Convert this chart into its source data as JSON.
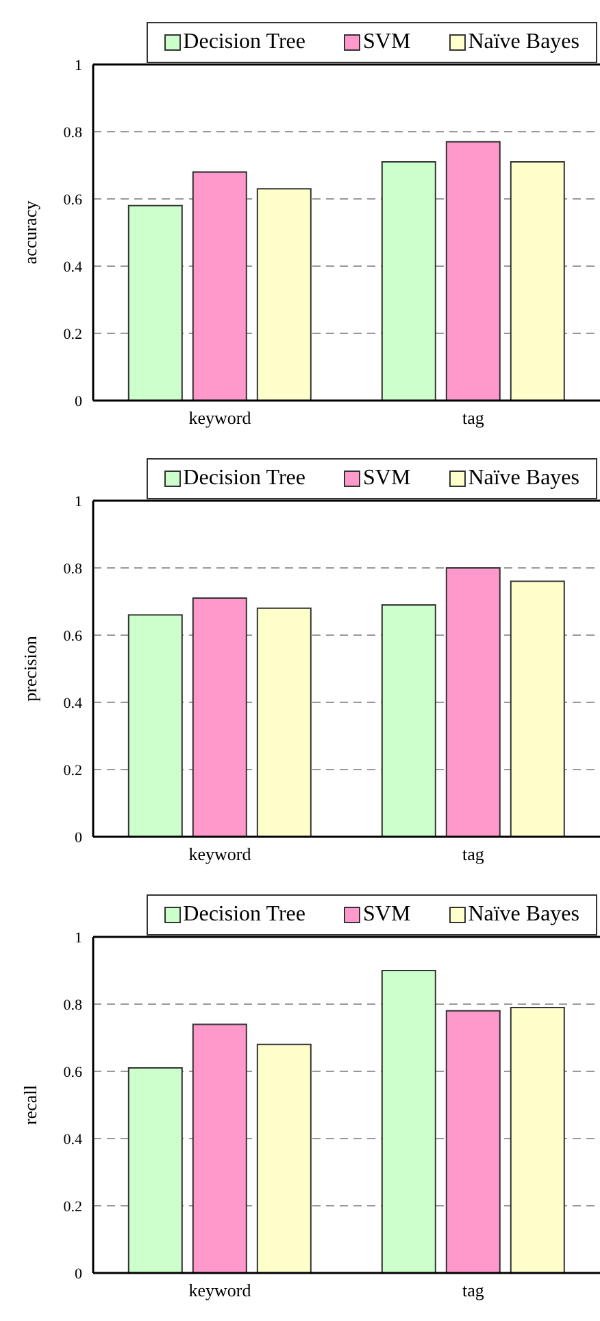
{
  "chart_data": [
    {
      "type": "bar",
      "ylabel": "accuracy",
      "categories": [
        "keyword",
        "tag"
      ],
      "series": [
        {
          "name": "Decision Tree",
          "color": "#ccffcc",
          "values": [
            0.58,
            0.71
          ]
        },
        {
          "name": "SVM",
          "color": "#ff99cc",
          "values": [
            0.68,
            0.77
          ]
        },
        {
          "name": "Naïve Bayes",
          "color": "#ffffcc",
          "values": [
            0.63,
            0.71
          ]
        }
      ],
      "ylim": [
        0,
        1
      ],
      "yticks": [
        0,
        0.2,
        0.4,
        0.6,
        0.8,
        1
      ],
      "grid": "y",
      "legend": "top"
    },
    {
      "type": "bar",
      "ylabel": "precision",
      "categories": [
        "keyword",
        "tag"
      ],
      "series": [
        {
          "name": "Decision Tree",
          "color": "#ccffcc",
          "values": [
            0.66,
            0.69
          ]
        },
        {
          "name": "SVM",
          "color": "#ff99cc",
          "values": [
            0.71,
            0.8
          ]
        },
        {
          "name": "Naïve Bayes",
          "color": "#ffffcc",
          "values": [
            0.68,
            0.76
          ]
        }
      ],
      "ylim": [
        0,
        1
      ],
      "yticks": [
        0,
        0.2,
        0.4,
        0.6,
        0.8,
        1
      ],
      "grid": "y",
      "legend": "top"
    },
    {
      "type": "bar",
      "ylabel": "recall",
      "categories": [
        "keyword",
        "tag"
      ],
      "series": [
        {
          "name": "Decision Tree",
          "color": "#ccffcc",
          "values": [
            0.61,
            0.9
          ]
        },
        {
          "name": "SVM",
          "color": "#ff99cc",
          "values": [
            0.74,
            0.78
          ]
        },
        {
          "name": "Naïve Bayes",
          "color": "#ffffcc",
          "values": [
            0.68,
            0.79
          ]
        }
      ],
      "ylim": [
        0,
        1
      ],
      "yticks": [
        0,
        0.2,
        0.4,
        0.6,
        0.8,
        1
      ],
      "grid": "y",
      "legend": "top"
    }
  ]
}
